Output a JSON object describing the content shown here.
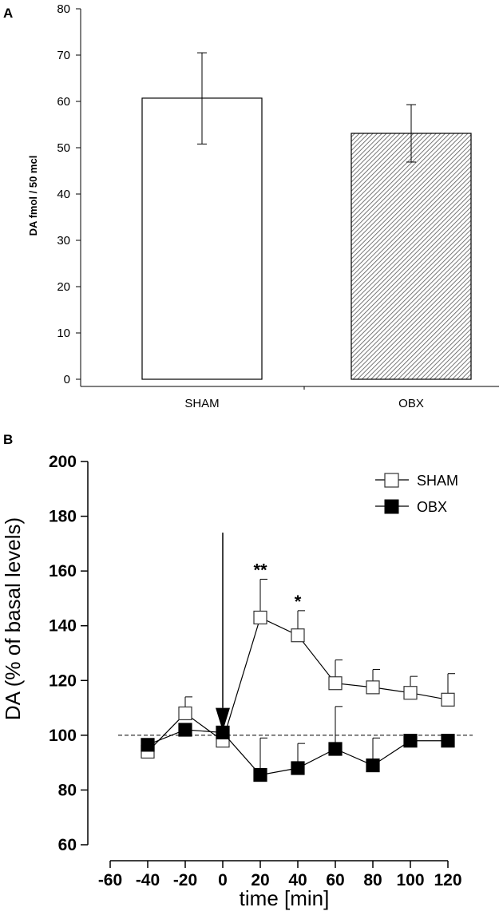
{
  "colors": {
    "axis": "#000000",
    "bar_sham": "#ffffff",
    "bar_obx_hatch": "#555555",
    "obx_marker": "#000000",
    "sham_marker": "#ffffff"
  },
  "chart_data": [
    {
      "panel_label": "A",
      "type": "bar",
      "categories": [
        "SHAM",
        "OBX"
      ],
      "values": [
        60.7,
        53.1
      ],
      "error_upper": [
        70.5,
        59.3
      ],
      "error_lower": [
        50.8,
        46.9
      ],
      "bar_fill": [
        "white",
        "hatched"
      ],
      "ylabel": "DA fmol / 50 mcl",
      "xlabel": "",
      "ylim": [
        0,
        80
      ],
      "yticks": [
        0,
        10,
        20,
        30,
        40,
        50,
        60,
        70,
        80
      ]
    },
    {
      "panel_label": "B",
      "type": "line",
      "xlabel": "time [min]",
      "ylabel": "DA (% of basal levels)",
      "xlim": [
        -60,
        120
      ],
      "ylim": [
        60,
        200
      ],
      "xticks": [
        -60,
        -40,
        -20,
        0,
        20,
        40,
        60,
        80,
        100,
        120
      ],
      "yticks": [
        60,
        80,
        100,
        120,
        140,
        160,
        180,
        200
      ],
      "legend_position": "top-right",
      "baseline": 100,
      "arrow_at_x": 0,
      "series": [
        {
          "name": "SHAM",
          "marker": "open-square",
          "x": [
            -40,
            -20,
            0,
            20,
            40,
            60,
            80,
            100,
            120
          ],
          "y": [
            94,
            108,
            98,
            143,
            136.5,
            119,
            117.5,
            115.5,
            113
          ],
          "error_upper": [
            null,
            114,
            null,
            157,
            145.5,
            127.5,
            124,
            121.5,
            122.5
          ]
        },
        {
          "name": "OBX",
          "marker": "filled-square",
          "x": [
            -40,
            -20,
            0,
            20,
            40,
            60,
            80,
            100,
            120
          ],
          "y": [
            96.5,
            102,
            101,
            85.5,
            88,
            95,
            89,
            98,
            98
          ],
          "error_upper": [
            null,
            null,
            null,
            99,
            97,
            110.5,
            99,
            null,
            null
          ]
        }
      ],
      "annotations": [
        {
          "x": 20,
          "text": "**"
        },
        {
          "x": 40,
          "text": "*"
        }
      ]
    }
  ]
}
